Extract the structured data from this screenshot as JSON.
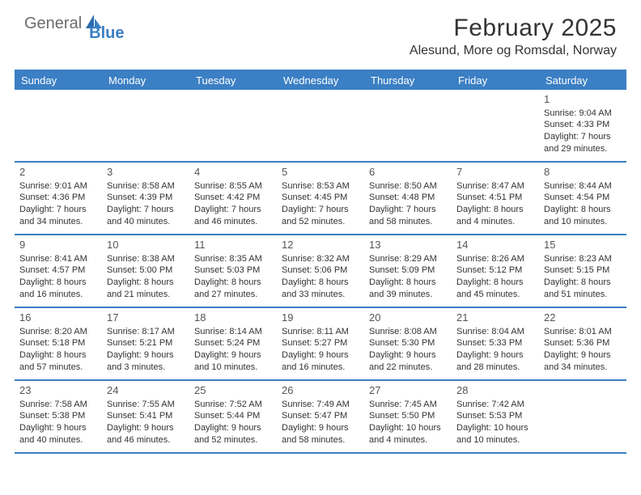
{
  "logo": {
    "text1": "General",
    "text2": "Blue"
  },
  "title": "February 2025",
  "location": "Alesund, More og Romsdal, Norway",
  "colors": {
    "accent": "#3b7fc4",
    "text": "#333333",
    "logoGray": "#6b6b6b",
    "background": "#ffffff"
  },
  "dayHeaders": [
    "Sunday",
    "Monday",
    "Tuesday",
    "Wednesday",
    "Thursday",
    "Friday",
    "Saturday"
  ],
  "weeks": [
    [
      null,
      null,
      null,
      null,
      null,
      null,
      {
        "num": "1",
        "sunrise": "Sunrise: 9:04 AM",
        "sunset": "Sunset: 4:33 PM",
        "daylight1": "Daylight: 7 hours",
        "daylight2": "and 29 minutes."
      }
    ],
    [
      {
        "num": "2",
        "sunrise": "Sunrise: 9:01 AM",
        "sunset": "Sunset: 4:36 PM",
        "daylight1": "Daylight: 7 hours",
        "daylight2": "and 34 minutes."
      },
      {
        "num": "3",
        "sunrise": "Sunrise: 8:58 AM",
        "sunset": "Sunset: 4:39 PM",
        "daylight1": "Daylight: 7 hours",
        "daylight2": "and 40 minutes."
      },
      {
        "num": "4",
        "sunrise": "Sunrise: 8:55 AM",
        "sunset": "Sunset: 4:42 PM",
        "daylight1": "Daylight: 7 hours",
        "daylight2": "and 46 minutes."
      },
      {
        "num": "5",
        "sunrise": "Sunrise: 8:53 AM",
        "sunset": "Sunset: 4:45 PM",
        "daylight1": "Daylight: 7 hours",
        "daylight2": "and 52 minutes."
      },
      {
        "num": "6",
        "sunrise": "Sunrise: 8:50 AM",
        "sunset": "Sunset: 4:48 PM",
        "daylight1": "Daylight: 7 hours",
        "daylight2": "and 58 minutes."
      },
      {
        "num": "7",
        "sunrise": "Sunrise: 8:47 AM",
        "sunset": "Sunset: 4:51 PM",
        "daylight1": "Daylight: 8 hours",
        "daylight2": "and 4 minutes."
      },
      {
        "num": "8",
        "sunrise": "Sunrise: 8:44 AM",
        "sunset": "Sunset: 4:54 PM",
        "daylight1": "Daylight: 8 hours",
        "daylight2": "and 10 minutes."
      }
    ],
    [
      {
        "num": "9",
        "sunrise": "Sunrise: 8:41 AM",
        "sunset": "Sunset: 4:57 PM",
        "daylight1": "Daylight: 8 hours",
        "daylight2": "and 16 minutes."
      },
      {
        "num": "10",
        "sunrise": "Sunrise: 8:38 AM",
        "sunset": "Sunset: 5:00 PM",
        "daylight1": "Daylight: 8 hours",
        "daylight2": "and 21 minutes."
      },
      {
        "num": "11",
        "sunrise": "Sunrise: 8:35 AM",
        "sunset": "Sunset: 5:03 PM",
        "daylight1": "Daylight: 8 hours",
        "daylight2": "and 27 minutes."
      },
      {
        "num": "12",
        "sunrise": "Sunrise: 8:32 AM",
        "sunset": "Sunset: 5:06 PM",
        "daylight1": "Daylight: 8 hours",
        "daylight2": "and 33 minutes."
      },
      {
        "num": "13",
        "sunrise": "Sunrise: 8:29 AM",
        "sunset": "Sunset: 5:09 PM",
        "daylight1": "Daylight: 8 hours",
        "daylight2": "and 39 minutes."
      },
      {
        "num": "14",
        "sunrise": "Sunrise: 8:26 AM",
        "sunset": "Sunset: 5:12 PM",
        "daylight1": "Daylight: 8 hours",
        "daylight2": "and 45 minutes."
      },
      {
        "num": "15",
        "sunrise": "Sunrise: 8:23 AM",
        "sunset": "Sunset: 5:15 PM",
        "daylight1": "Daylight: 8 hours",
        "daylight2": "and 51 minutes."
      }
    ],
    [
      {
        "num": "16",
        "sunrise": "Sunrise: 8:20 AM",
        "sunset": "Sunset: 5:18 PM",
        "daylight1": "Daylight: 8 hours",
        "daylight2": "and 57 minutes."
      },
      {
        "num": "17",
        "sunrise": "Sunrise: 8:17 AM",
        "sunset": "Sunset: 5:21 PM",
        "daylight1": "Daylight: 9 hours",
        "daylight2": "and 3 minutes."
      },
      {
        "num": "18",
        "sunrise": "Sunrise: 8:14 AM",
        "sunset": "Sunset: 5:24 PM",
        "daylight1": "Daylight: 9 hours",
        "daylight2": "and 10 minutes."
      },
      {
        "num": "19",
        "sunrise": "Sunrise: 8:11 AM",
        "sunset": "Sunset: 5:27 PM",
        "daylight1": "Daylight: 9 hours",
        "daylight2": "and 16 minutes."
      },
      {
        "num": "20",
        "sunrise": "Sunrise: 8:08 AM",
        "sunset": "Sunset: 5:30 PM",
        "daylight1": "Daylight: 9 hours",
        "daylight2": "and 22 minutes."
      },
      {
        "num": "21",
        "sunrise": "Sunrise: 8:04 AM",
        "sunset": "Sunset: 5:33 PM",
        "daylight1": "Daylight: 9 hours",
        "daylight2": "and 28 minutes."
      },
      {
        "num": "22",
        "sunrise": "Sunrise: 8:01 AM",
        "sunset": "Sunset: 5:36 PM",
        "daylight1": "Daylight: 9 hours",
        "daylight2": "and 34 minutes."
      }
    ],
    [
      {
        "num": "23",
        "sunrise": "Sunrise: 7:58 AM",
        "sunset": "Sunset: 5:38 PM",
        "daylight1": "Daylight: 9 hours",
        "daylight2": "and 40 minutes."
      },
      {
        "num": "24",
        "sunrise": "Sunrise: 7:55 AM",
        "sunset": "Sunset: 5:41 PM",
        "daylight1": "Daylight: 9 hours",
        "daylight2": "and 46 minutes."
      },
      {
        "num": "25",
        "sunrise": "Sunrise: 7:52 AM",
        "sunset": "Sunset: 5:44 PM",
        "daylight1": "Daylight: 9 hours",
        "daylight2": "and 52 minutes."
      },
      {
        "num": "26",
        "sunrise": "Sunrise: 7:49 AM",
        "sunset": "Sunset: 5:47 PM",
        "daylight1": "Daylight: 9 hours",
        "daylight2": "and 58 minutes."
      },
      {
        "num": "27",
        "sunrise": "Sunrise: 7:45 AM",
        "sunset": "Sunset: 5:50 PM",
        "daylight1": "Daylight: 10 hours",
        "daylight2": "and 4 minutes."
      },
      {
        "num": "28",
        "sunrise": "Sunrise: 7:42 AM",
        "sunset": "Sunset: 5:53 PM",
        "daylight1": "Daylight: 10 hours",
        "daylight2": "and 10 minutes."
      },
      null
    ]
  ]
}
